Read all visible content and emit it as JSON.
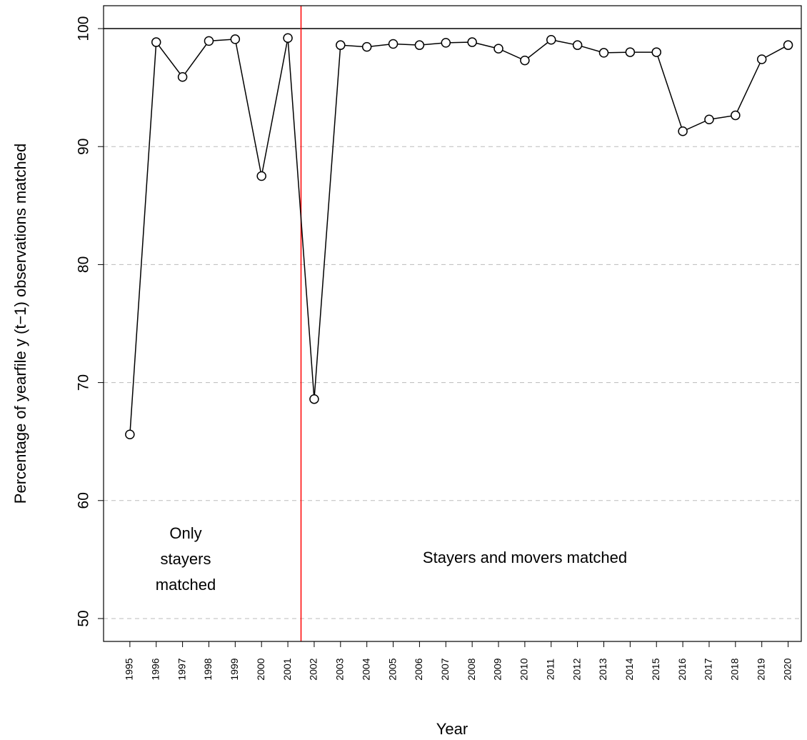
{
  "chart_data": {
    "type": "line",
    "x_label": "Year",
    "y_label": "Percentage of yearfile y (t−1) observations matched",
    "x": [
      1995,
      1996,
      1997,
      1998,
      1999,
      2000,
      2001,
      2002,
      2003,
      2004,
      2005,
      2006,
      2007,
      2008,
      2009,
      2010,
      2011,
      2012,
      2013,
      2014,
      2015,
      2016,
      2017,
      2018,
      2019,
      2020
    ],
    "series": [
      {
        "color": "#000000",
        "values": [
          65.6,
          98.85,
          95.9,
          98.95,
          99.1,
          87.5,
          99.2,
          68.6,
          98.6,
          98.45,
          98.7,
          98.6,
          98.8,
          98.85,
          98.3,
          97.3,
          99.05,
          98.6,
          97.95,
          98.0,
          98.0,
          91.3,
          92.3,
          92.65,
          97.4,
          98.6
        ]
      }
    ],
    "xlim": [
      1994,
      2020.5
    ],
    "xticks": [
      1995,
      1996,
      1997,
      1998,
      1999,
      2000,
      2001,
      2002,
      2003,
      2004,
      2005,
      2006,
      2007,
      2008,
      2009,
      2010,
      2011,
      2012,
      2013,
      2014,
      2015,
      2016,
      2017,
      2018,
      2019,
      2020
    ],
    "ylim": [
      48.06,
      101.94
    ],
    "yticks": [
      50,
      60,
      70,
      80,
      90,
      100
    ],
    "grid": true,
    "hline": 100,
    "vline": {
      "value": 2001.5,
      "color": "#ff0000"
    },
    "annotations": [
      [
        "Only",
        "stayers",
        "matched"
      ],
      [
        "Stayers and movers matched"
      ]
    ]
  }
}
